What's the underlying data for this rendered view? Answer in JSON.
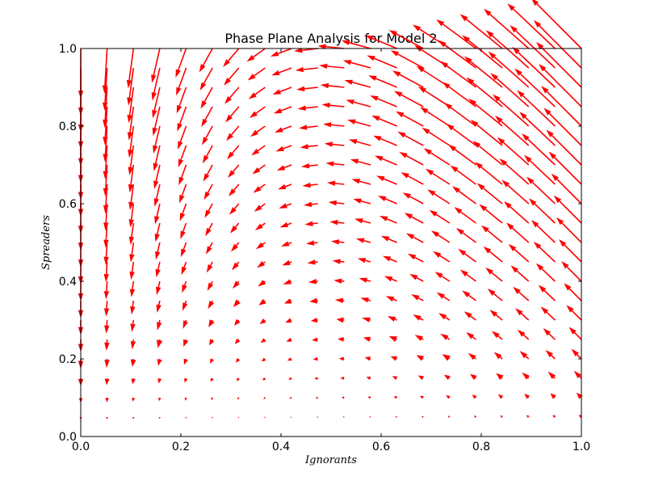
{
  "chart_data": {
    "type": "quiver",
    "title": "Phase Plane Analysis for Model 2",
    "xlabel": "Ignorants",
    "ylabel": "Spreaders",
    "xlim": [
      0.0,
      1.0
    ],
    "ylim": [
      0.0,
      1.0
    ],
    "x_ticks": [
      "0.0",
      "0.2",
      "0.4",
      "0.6",
      "0.8",
      "1.0"
    ],
    "y_ticks": [
      "0.0",
      "0.2",
      "0.4",
      "0.6",
      "0.8",
      "1.0"
    ],
    "grid": false,
    "arrow_color": "#ff0000",
    "vector_field": {
      "x_range": [
        0.0,
        1.0
      ],
      "y_range": [
        0.05,
        1.0
      ],
      "grid_points": 20,
      "dx": "-x*y",
      "dy": "x*y - y*(1 - x)"
    }
  }
}
